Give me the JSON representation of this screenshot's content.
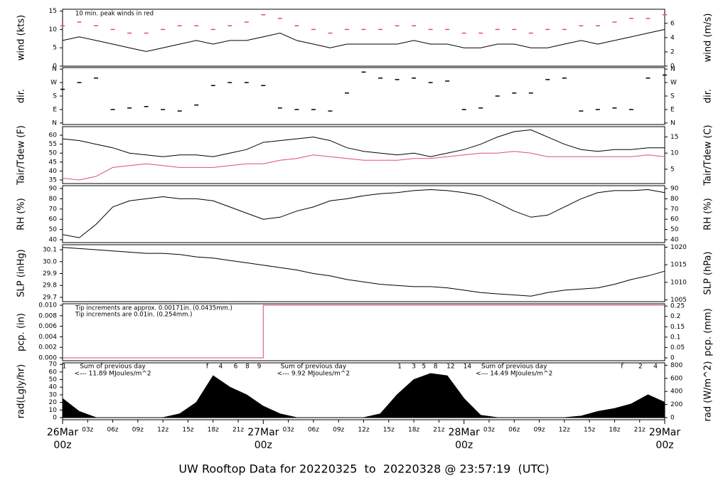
{
  "chart_data": [
    {
      "type": "line",
      "ylabel": "wind (kts)",
      "y2label": "wind (m/s)",
      "xlim": [
        0,
        72
      ],
      "ylim": [
        0,
        15.5
      ],
      "yticks": [
        0,
        5,
        10,
        15
      ],
      "y2lim": [
        0,
        7.97
      ],
      "y2ticks": [
        0,
        2,
        4,
        6
      ],
      "notes": [
        {
          "text": "10 min. peak winds in red",
          "color": "#e0506a"
        }
      ],
      "x": [
        0,
        2,
        4,
        6,
        8,
        10,
        12,
        14,
        16,
        18,
        20,
        22,
        24,
        26,
        28,
        30,
        32,
        34,
        36,
        38,
        40,
        42,
        44,
        46,
        48,
        50,
        52,
        54,
        56,
        58,
        60,
        62,
        64,
        66,
        68,
        70,
        72
      ],
      "series": [
        {
          "name": "wind",
          "color": "#000000",
          "values": [
            7,
            8,
            7,
            6,
            5,
            4,
            5,
            6,
            7,
            6,
            7,
            7,
            8,
            9,
            7,
            6,
            5,
            6,
            6,
            6,
            6,
            7,
            6,
            6,
            5,
            5,
            6,
            6,
            5,
            5,
            6,
            7,
            6,
            7,
            8,
            9,
            10
          ]
        },
        {
          "name": "peak",
          "color": "#e0506a",
          "marker": "dash",
          "values": [
            11,
            12,
            11,
            10,
            9,
            9,
            10,
            11,
            11,
            10,
            11,
            12,
            14,
            13,
            11,
            10,
            9,
            10,
            10,
            10,
            11,
            11,
            10,
            10,
            9,
            9,
            10,
            10,
            9,
            10,
            10,
            11,
            11,
            12,
            13,
            13,
            14
          ]
        }
      ]
    },
    {
      "type": "scatter",
      "ylabel": "dir.",
      "y2label": "dir.",
      "xlim": [
        0,
        72
      ],
      "ylim": [
        -10,
        370
      ],
      "yticks": [
        {
          "value": 0,
          "label": "N"
        },
        {
          "value": 90,
          "label": "E"
        },
        {
          "value": 180,
          "label": "S"
        },
        {
          "value": 270,
          "label": "W"
        },
        {
          "value": 360,
          "label": "N"
        }
      ],
      "y2lim": [
        -10,
        370
      ],
      "y2ticks": [
        {
          "value": 0,
          "label": "N"
        },
        {
          "value": 90,
          "label": "E"
        },
        {
          "value": 180,
          "label": "S"
        },
        {
          "value": 270,
          "label": "W"
        },
        {
          "value": 360,
          "label": "N"
        }
      ],
      "x": [
        0,
        2,
        4,
        6,
        8,
        10,
        12,
        14,
        16,
        18,
        20,
        22,
        24,
        26,
        28,
        30,
        32,
        34,
        36,
        38,
        40,
        42,
        44,
        46,
        48,
        50,
        52,
        54,
        56,
        58,
        60,
        62,
        64,
        66,
        68,
        70,
        72
      ],
      "series": [
        {
          "name": "dir",
          "color": "#000000",
          "values": [
            225,
            270,
            300,
            90,
            100,
            110,
            90,
            80,
            120,
            250,
            270,
            270,
            250,
            100,
            90,
            90,
            80,
            200,
            340,
            300,
            290,
            300,
            270,
            280,
            90,
            100,
            180,
            200,
            200,
            290,
            300,
            80,
            90,
            100,
            90,
            300,
            320
          ]
        }
      ]
    },
    {
      "type": "line",
      "ylabel": "Tair/Tdew (F)",
      "y2label": "Tair/Tdew (C)",
      "xlim": [
        0,
        72
      ],
      "ylim": [
        33,
        64.8
      ],
      "yticks": [
        35,
        40,
        45,
        50,
        55,
        60
      ],
      "y2lim": [
        0.56,
        18.2
      ],
      "y2ticks": [
        5,
        10,
        15
      ],
      "x": [
        0,
        2,
        4,
        6,
        8,
        10,
        12,
        14,
        16,
        18,
        20,
        22,
        24,
        26,
        28,
        30,
        32,
        34,
        36,
        38,
        40,
        42,
        44,
        46,
        48,
        50,
        52,
        54,
        56,
        58,
        60,
        62,
        64,
        66,
        68,
        70,
        72
      ],
      "series": [
        {
          "name": "Tair",
          "color": "#000000",
          "values": [
            58,
            57,
            55,
            53,
            50,
            49,
            48,
            49,
            49,
            48,
            50,
            52,
            56,
            57,
            58,
            59,
            57,
            53,
            51,
            50,
            49,
            50,
            48,
            50,
            52,
            55,
            59,
            62,
            63,
            59,
            55,
            52,
            51,
            52,
            52,
            53,
            53
          ]
        },
        {
          "name": "Tdew",
          "color": "#e0506a",
          "values": [
            36,
            35,
            37,
            42,
            43,
            44,
            43,
            42,
            42,
            42,
            43,
            44,
            44,
            46,
            47,
            49,
            48,
            47,
            46,
            46,
            46,
            47,
            47,
            48,
            49,
            50,
            50,
            51,
            50,
            48,
            48,
            48,
            48,
            48,
            48,
            49,
            48
          ]
        }
      ]
    },
    {
      "type": "line",
      "ylabel": "RH (%)",
      "y2label": "RH (%)",
      "xlim": [
        0,
        72
      ],
      "ylim": [
        37.2,
        92.8
      ],
      "yticks": [
        40,
        50,
        60,
        70,
        80,
        90
      ],
      "y2lim": [
        37.2,
        92.8
      ],
      "y2ticks": [
        40,
        50,
        60,
        70,
        80,
        90
      ],
      "x": [
        0,
        2,
        4,
        6,
        8,
        10,
        12,
        14,
        16,
        18,
        20,
        22,
        24,
        26,
        28,
        30,
        32,
        34,
        36,
        38,
        40,
        42,
        44,
        46,
        48,
        50,
        52,
        54,
        56,
        58,
        60,
        62,
        64,
        66,
        68,
        70,
        72
      ],
      "series": [
        {
          "name": "RH",
          "color": "#000000",
          "values": [
            45,
            42,
            55,
            72,
            78,
            80,
            82,
            80,
            80,
            78,
            72,
            66,
            60,
            62,
            68,
            72,
            78,
            80,
            83,
            85,
            86,
            88,
            89,
            88,
            86,
            83,
            76,
            68,
            62,
            64,
            72,
            80,
            86,
            88,
            88,
            89,
            86
          ]
        }
      ]
    },
    {
      "type": "line",
      "ylabel": "SLP (inHg)",
      "y2label": "SLP (hPa)",
      "xlim": [
        0,
        72
      ],
      "ylim": [
        29.664,
        30.142
      ],
      "yticks": [
        29.7,
        29.8,
        29.9,
        {
          "value": 30.0,
          "label": "30.0"
        },
        30.1
      ],
      "y2lim": [
        1004.5,
        1020.7
      ],
      "y2ticks": [
        1005,
        1010,
        1015,
        1020
      ],
      "x": [
        0,
        2,
        4,
        6,
        8,
        10,
        12,
        14,
        16,
        18,
        20,
        22,
        24,
        26,
        28,
        30,
        32,
        34,
        36,
        38,
        40,
        42,
        44,
        46,
        48,
        50,
        52,
        54,
        56,
        58,
        60,
        62,
        64,
        66,
        68,
        70,
        72
      ],
      "series": [
        {
          "name": "SLP",
          "color": "#000000",
          "values": [
            30.12,
            30.11,
            30.1,
            30.09,
            30.08,
            30.07,
            30.07,
            30.06,
            30.04,
            30.03,
            30.01,
            29.99,
            29.97,
            29.95,
            29.93,
            29.9,
            29.88,
            29.85,
            29.83,
            29.81,
            29.8,
            29.79,
            29.79,
            29.78,
            29.76,
            29.74,
            29.73,
            29.72,
            29.71,
            29.74,
            29.76,
            29.77,
            29.78,
            29.81,
            29.85,
            29.88,
            29.92
          ]
        }
      ]
    },
    {
      "type": "line",
      "ylabel": "pcp. (in)",
      "y2label": "pcp. (mm)",
      "xlim": [
        0,
        72
      ],
      "ylim": [
        -0.00054,
        0.01027
      ],
      "yticks": [
        {
          "value": 0,
          "label": "0.000"
        },
        0.002,
        0.004,
        0.006,
        0.008,
        {
          "value": 0.01,
          "label": "0.010"
        }
      ],
      "y2lim": [
        -0.0137,
        0.2609
      ],
      "y2ticks": [
        0,
        0.05,
        0.1,
        0.15,
        0.2,
        0.25
      ],
      "notes": [
        {
          "text": "Tip increments are approx. 0.00171in. (0.0435mm.)",
          "color": "#e0506a"
        },
        {
          "text": "Tip increments are 0.01in. (0.254mm.)",
          "color": "#3399cc"
        }
      ],
      "series": [
        {
          "name": "pcp",
          "color": "#d04a8a",
          "x": [
            0,
            24,
            24,
            72
          ],
          "values": [
            0,
            0,
            0.01,
            0.01
          ]
        }
      ]
    },
    {
      "type": "area",
      "ylabel": "rad(Lgly/hr)",
      "y2label": "rad (W/m^2)",
      "xlim": [
        0,
        72
      ],
      "ylim": [
        -2.8,
        72
      ],
      "yticks": [
        0,
        10,
        20,
        30,
        40,
        50,
        60,
        70
      ],
      "y2lim": [
        -33,
        837
      ],
      "y2ticks": [
        0,
        200,
        400,
        600,
        800
      ],
      "x": [
        0,
        2,
        4,
        6,
        8,
        10,
        12,
        14,
        16,
        18,
        20,
        22,
        24,
        26,
        28,
        30,
        32,
        34,
        36,
        38,
        40,
        42,
        44,
        46,
        48,
        50,
        52,
        54,
        56,
        58,
        60,
        62,
        64,
        66,
        68,
        70,
        72
      ],
      "series": [
        {
          "name": "rad",
          "color": "#000000",
          "values": [
            25,
            8,
            0,
            0,
            0,
            0,
            0,
            5,
            20,
            55,
            40,
            30,
            15,
            5,
            0,
            0,
            0,
            0,
            0,
            5,
            30,
            50,
            58,
            55,
            25,
            3,
            0,
            0,
            0,
            0,
            0,
            2,
            8,
            12,
            18,
            30,
            20
          ]
        }
      ],
      "text_color": "#9933cc",
      "day_sums": [
        {
          "label": "Sum of previous day",
          "sum": "<--- 11.89 MJoules/m^2"
        },
        {
          "label": "Sum of previous day",
          "sum": "<--- 9.92 MJoules/m^2"
        },
        {
          "label": "Sum of previous day",
          "sum": "<--- 14.49 MJoules/m^2"
        }
      ],
      "hour_marks": [
        {
          "value": 0.2,
          "label": "1"
        },
        {
          "value": 17.3,
          "label": "f"
        },
        {
          "value": 18.9,
          "label": "4"
        },
        {
          "value": 20.7,
          "label": "6"
        },
        {
          "value": 22.1,
          "label": "8"
        },
        {
          "value": 23.5,
          "label": "9"
        },
        {
          "value": 40.3,
          "label": "1"
        },
        {
          "value": 42,
          "label": "3"
        },
        {
          "value": 43.2,
          "label": "5"
        },
        {
          "value": 44.6,
          "label": "8"
        },
        {
          "value": 46.4,
          "label": "12"
        },
        {
          "value": 48.4,
          "label": "14"
        },
        {
          "value": 66.9,
          "label": "f"
        },
        {
          "value": 69.1,
          "label": "2"
        },
        {
          "value": 70.9,
          "label": "4"
        }
      ],
      "xticks": [
        {
          "value": 3,
          "label": "03z"
        },
        {
          "value": 6,
          "label": "06z"
        },
        {
          "value": 9,
          "label": "09z"
        },
        {
          "value": 12,
          "label": "12z"
        },
        {
          "value": 15,
          "label": "15z"
        },
        {
          "value": 18,
          "label": "18z"
        },
        {
          "value": 21,
          "label": "21z"
        },
        {
          "value": 27,
          "label": "03z"
        },
        {
          "value": 30,
          "label": "06z"
        },
        {
          "value": 33,
          "label": "09z"
        },
        {
          "value": 36,
          "label": "12z"
        },
        {
          "value": 39,
          "label": "15z"
        },
        {
          "value": 42,
          "label": "18z"
        },
        {
          "value": 45,
          "label": "21z"
        },
        {
          "value": 51,
          "label": "03z"
        },
        {
          "value": 54,
          "label": "06z"
        },
        {
          "value": 57,
          "label": "09z"
        },
        {
          "value": 60,
          "label": "12z"
        },
        {
          "value": 63,
          "label": "15z"
        },
        {
          "value": 66,
          "label": "18z"
        },
        {
          "value": 69,
          "label": "21z"
        }
      ],
      "date_color": "#d9536e",
      "date_ticks": [
        {
          "value": 0,
          "label": "26Mar",
          "hour": "00z"
        },
        {
          "value": 24,
          "label": "27Mar",
          "hour": "00z"
        },
        {
          "value": 48,
          "label": "28Mar",
          "hour": "00z"
        },
        {
          "value": 72,
          "label": "29Mar",
          "hour": "00z"
        }
      ]
    }
  ],
  "footer": "UW Rooftop Data for 20220325  to  20220328 @ 23:57:19  (UTC)",
  "footer_color": "#3399dd"
}
